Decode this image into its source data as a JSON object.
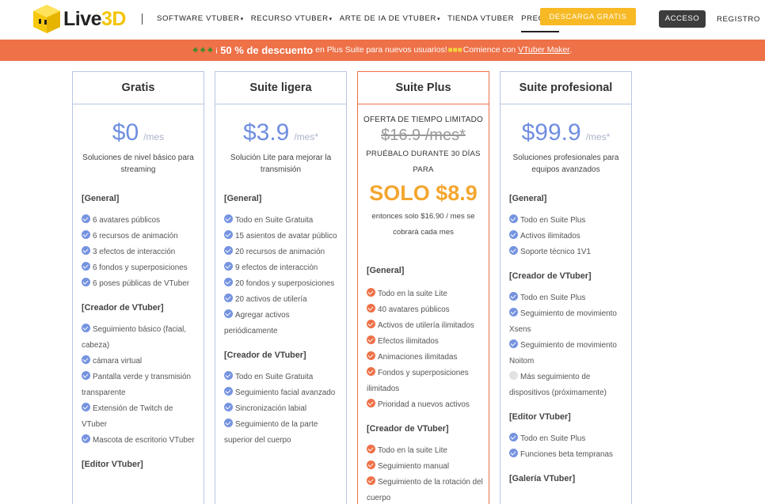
{
  "header": {
    "logo_text_a": "Live",
    "logo_text_b": "3D",
    "nav": [
      {
        "label": "SOFTWARE VTUBER",
        "caret": "▾"
      },
      {
        "label": "RECURSO VTUBER",
        "caret": "▾"
      },
      {
        "label": "ARTE DE IA DE VTUBER",
        "caret": "▾"
      },
      {
        "label": "TIENDA VTUBER",
        "caret": ""
      },
      {
        "label": "PRECIOS",
        "caret": ""
      }
    ],
    "download_label": "DESCARGA GRATIS",
    "login_label": "ACCESO",
    "register_label": "REGISTRO"
  },
  "promo": {
    "pre": "¡",
    "highlight": "50 % de descuento",
    "mid": "en Plus Suite para nuevos usuarios!",
    "post": "Comience con",
    "link": "VTuber Maker",
    "tail": "."
  },
  "plans": {
    "free": {
      "title": "Gratis",
      "price": "$0",
      "per": "/mes",
      "desc": "Soluciones de nivel básico para streaming",
      "sec1": "[General]",
      "items1": [
        "6 avatares públicos",
        "6 recursos de animación",
        "3 efectos de interacción",
        "6 fondos y superposiciones",
        "6 poses públicas de VTuber"
      ],
      "sec2": "[Creador de VTuber]",
      "items2": [
        "Seguimiento básico (facial, cabeza)",
        "cámara virtual",
        "Pantalla verde y transmisión transparente",
        "Extensión de Twitch de VTuber",
        "Mascota de escritorio VTuber"
      ],
      "sec3": "[Editor VTuber]"
    },
    "lite": {
      "title": "Suite ligera",
      "price": "$3.9",
      "per": "/mes*",
      "desc": "Solución Lite para mejorar la transmisión",
      "sec1": "[General]",
      "items1": [
        "Todo en Suite Gratuita",
        "15 asientos de avatar público",
        "20 recursos de animación",
        "9 efectos de interacción",
        "20 fondos y superposiciones",
        "20 activos de utilería",
        "Agregar activos periódicamente"
      ],
      "sec2": "[Creador de VTuber]",
      "items2": [
        "Todo en Suite Gratuita",
        "Seguimiento facial avanzado",
        "Sincronización labial",
        "Seguimiento de la parte superior del cuerpo"
      ]
    },
    "plus": {
      "title": "Suite Plus",
      "offer": "OFERTA DE TIEMPO LIMITADO",
      "old_price": "$16.9 /mes*",
      "try": "PRUÉBALO DURANTE 30 DÍAS PARA",
      "solo": "SOLO $8.9",
      "then": "entonces solo $16.90 / mes se cobrará cada mes",
      "sec1": "[General]",
      "items1": [
        "Todo en la suite Lite",
        "40 avatares públicos",
        "Activos de utilería ilimitados",
        "Efectos ilimitados",
        "Animaciones ilimitadas",
        "Fondos y superposiciones ilimitados",
        "Prioridad a nuevos activos"
      ],
      "sec2": "[Creador de VTuber]",
      "items2": [
        "Todo en la suite Lite",
        "Seguimiento manual",
        "Seguimiento de la rotación del cuerpo"
      ]
    },
    "pro": {
      "title": "Suite profesional",
      "price": "$99.9",
      "per": "/mes*",
      "desc": "Soluciones profesionales para equipos avanzados",
      "sec1": "[General]",
      "items1": [
        "Todo en Suite Plus",
        "Activos ilimitados",
        "Soporte técnico 1V1"
      ],
      "sec2": "[Creador de VTuber]",
      "items2": [
        "Todo en Suite Plus",
        "Seguimiento de movimiento Xsens",
        "Seguimiento de movimiento Noitom",
        "Más seguimiento de dispositivos (próximamente)"
      ],
      "sec3": "[Editor VTuber]",
      "items3": [
        "Todo en Suite Plus",
        "Funciones beta tempranas"
      ],
      "sec4": "[Galería VTuber]"
    }
  },
  "colors": {
    "accent_blue": "#6f8ee0",
    "promo_orange": "#ee7148",
    "download_yellow": "#f7b924",
    "solo_orange": "#f4a62f"
  }
}
